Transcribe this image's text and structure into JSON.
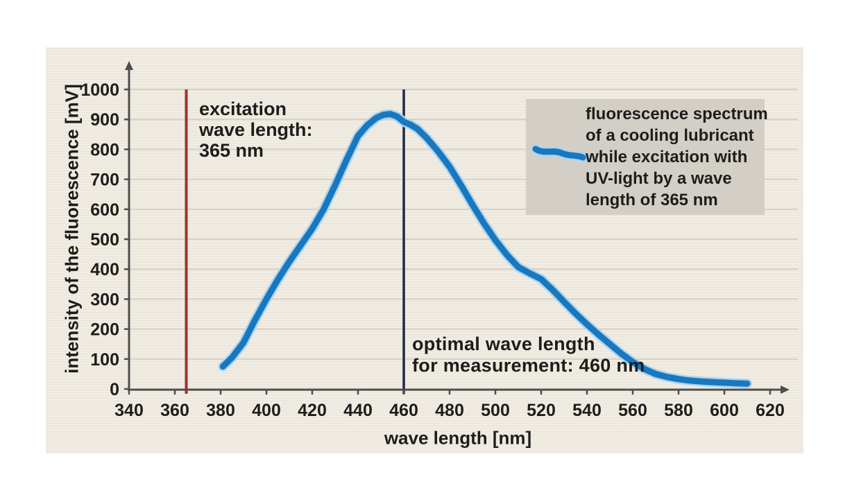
{
  "figure": {
    "panel_bg": "#f1ece2",
    "grid_color": "#d6d0c4",
    "axis_color": "#4d4d4d",
    "text_color": "#1d1d1b",
    "legend_bg": "#d3cfc6"
  },
  "chart_data": {
    "type": "line",
    "title": "",
    "xlabel": "wave length [nm]",
    "ylabel": "intensity of the fluorescence [mV]",
    "xlim": [
      340,
      620
    ],
    "ylim": [
      0,
      1000
    ],
    "x_ticks": [
      340,
      360,
      380,
      400,
      420,
      440,
      460,
      480,
      500,
      520,
      540,
      560,
      580,
      600,
      620
    ],
    "y_ticks": [
      0,
      100,
      200,
      300,
      400,
      500,
      600,
      700,
      800,
      900,
      1000
    ],
    "grid": "horizontal",
    "legend_position": "upper right",
    "series": [
      {
        "name": "fluorescence spectrum of a cooling lubricant while excitation with UV-light by a wave length of 365 nm",
        "color": "#1878bf",
        "halo_color": "#add4ee",
        "x": [
          381,
          385,
          390,
          395,
          400,
          405,
          410,
          415,
          420,
          425,
          430,
          435,
          440,
          444,
          448,
          451,
          454,
          457,
          460,
          463,
          466,
          470,
          475,
          480,
          485,
          490,
          495,
          500,
          505,
          510,
          515,
          520,
          525,
          530,
          535,
          540,
          545,
          550,
          555,
          560,
          565,
          570,
          575,
          580,
          585,
          590,
          595,
          600,
          605,
          610
        ],
        "y": [
          75,
          105,
          155,
          230,
          300,
          365,
          425,
          480,
          535,
          600,
          680,
          765,
          845,
          880,
          905,
          915,
          918,
          910,
          892,
          882,
          868,
          838,
          793,
          742,
          680,
          615,
          553,
          497,
          448,
          407,
          386,
          367,
          331,
          291,
          252,
          216,
          182,
          150,
          118,
          90,
          67,
          50,
          40,
          33,
          28,
          25,
          23,
          21,
          19,
          18
        ]
      }
    ],
    "reference_lines": [
      {
        "x": 365,
        "color": "#a5302a",
        "label": "excitation wave length: 365 nm"
      },
      {
        "x": 460,
        "color": "#1e2a44",
        "label": "optimal wave length for measurement: 460 nm"
      }
    ]
  },
  "annotations": {
    "excitation": {
      "lines": [
        "excitation",
        "wave length:",
        "365 nm"
      ]
    },
    "optimal": {
      "lines": [
        "optimal wave length",
        "for measurement: 460 nm"
      ]
    }
  },
  "legend": {
    "lines": [
      "fluorescence spectrum",
      "of a cooling lubricant",
      "while excitation with",
      "UV-light by a wave",
      "length of 365 nm"
    ]
  },
  "axes": {
    "xlabel": "wave length [nm]",
    "ylabel": "intensity of the fluorescence [mV]"
  }
}
